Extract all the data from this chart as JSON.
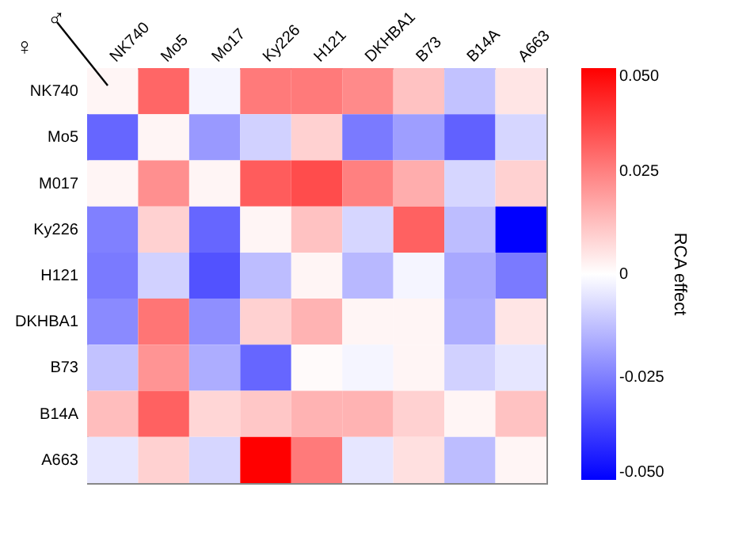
{
  "chart_data": {
    "type": "heatmap",
    "xlabel": "♂",
    "ylabel": "♀",
    "clabel": "RCA effect",
    "categories": [
      "NK740",
      "Mo5",
      "Mo17",
      "Ky226",
      "H121",
      "DKHBA1",
      "B73",
      "B14A",
      "A663"
    ],
    "y_categories": [
      "NK740",
      "Mo5",
      "M017",
      "Ky226",
      "H121",
      "DKHBA1",
      "B73",
      "B14A",
      "A663"
    ],
    "cells": [
      [
        0.002,
        0.03,
        -0.002,
        0.026,
        0.026,
        0.023,
        0.012,
        -0.012,
        0.005
      ],
      [
        -0.03,
        0.002,
        -0.02,
        -0.009,
        0.009,
        -0.026,
        -0.019,
        -0.031,
        -0.008
      ],
      [
        0.002,
        0.022,
        0.002,
        0.032,
        0.035,
        0.025,
        0.016,
        -0.008,
        0.009
      ],
      [
        -0.025,
        0.009,
        -0.03,
        0.002,
        0.012,
        -0.008,
        0.031,
        -0.013,
        -0.05
      ],
      [
        -0.026,
        -0.009,
        -0.034,
        -0.013,
        0.002,
        -0.014,
        -0.002,
        -0.017,
        -0.026
      ],
      [
        -0.023,
        0.027,
        -0.022,
        0.009,
        0.015,
        0.002,
        0.002,
        -0.016,
        0.005
      ],
      [
        -0.012,
        0.021,
        -0.016,
        -0.03,
        0.001,
        -0.002,
        0.002,
        -0.009,
        -0.005
      ],
      [
        0.013,
        0.031,
        0.008,
        0.011,
        0.015,
        0.015,
        0.009,
        0.002,
        0.012
      ],
      [
        -0.005,
        0.009,
        -0.008,
        0.05,
        0.026,
        -0.005,
        0.006,
        -0.013,
        0.002
      ]
    ],
    "clim": [
      -0.05,
      0.05
    ],
    "cticks": [
      {
        "value": -0.05,
        "label": "-0.050"
      },
      {
        "value": -0.025,
        "label": "-0.025"
      },
      0,
      {
        "value": 0.025,
        "label": "0.025"
      },
      {
        "value": 0.05,
        "label": "0.050"
      }
    ]
  }
}
